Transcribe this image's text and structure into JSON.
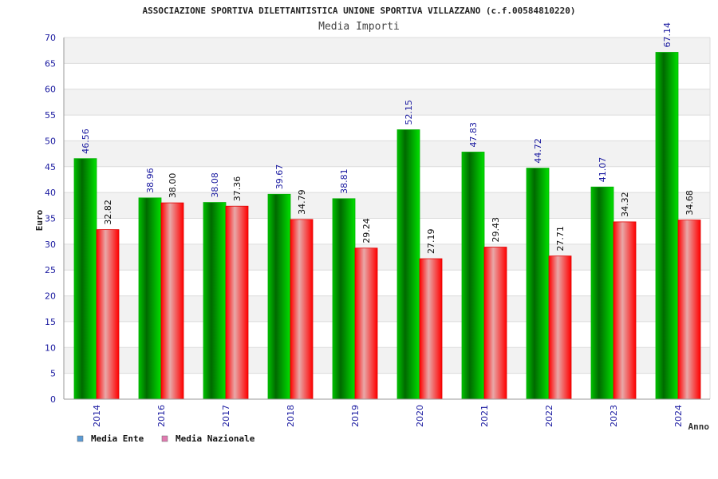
{
  "chart_data": {
    "type": "bar",
    "title": "ASSOCIAZIONE SPORTIVA DILETTANTISTICA UNIONE SPORTIVA VILLAZZANO (c.f.00584810220)",
    "subtitle": "Media Importi",
    "xlabel": "Anno",
    "ylabel": "Euro",
    "categories": [
      "2014",
      "2016",
      "2017",
      "2018",
      "2019",
      "2020",
      "2021",
      "2022",
      "2023",
      "2024"
    ],
    "series": [
      {
        "name": "Media Ente",
        "color": "#00a000",
        "values": [
          46.56,
          38.96,
          38.08,
          39.67,
          38.81,
          52.15,
          47.83,
          44.72,
          41.07,
          67.14
        ],
        "labels": [
          "46.56",
          "38.96",
          "38.08",
          "39.67",
          "38.81",
          "52.15",
          "47.83",
          "44.72",
          "41.07",
          "67.14"
        ]
      },
      {
        "name": "Media Nazionale",
        "color": "#ff0000",
        "values": [
          32.82,
          38.0,
          37.36,
          34.79,
          29.24,
          27.19,
          29.43,
          27.71,
          34.32,
          34.68
        ],
        "labels": [
          "32.82",
          "38.00",
          "37.36",
          "34.79",
          "29.24",
          "27.19",
          "29.43",
          "27.71",
          "34.32",
          "34.68"
        ]
      }
    ],
    "ylim": [
      0,
      70
    ],
    "yticks": [
      "0",
      "5",
      "10",
      "15",
      "20",
      "25",
      "30",
      "35",
      "40",
      "45",
      "50",
      "55",
      "60",
      "65",
      "70"
    ],
    "grid": true,
    "legend": {
      "position": "bottom-left",
      "items": [
        {
          "label": "Media Ente",
          "color": "#5b9bd5"
        },
        {
          "label": "Media Nazionale",
          "color": "#e07ab0"
        }
      ]
    }
  }
}
